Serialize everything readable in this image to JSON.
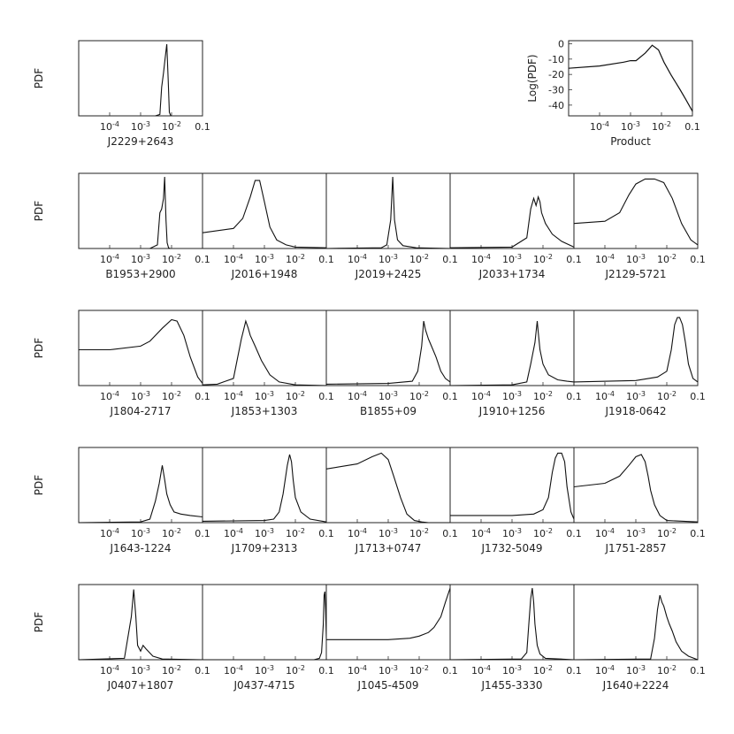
{
  "chart_data": {
    "type": "line",
    "x_scale": "log",
    "x_range": [
      1e-05,
      0.1
    ],
    "x_ticks": [
      {
        "value": 0.0001,
        "label_base": "10",
        "label_exp": "-4"
      },
      {
        "value": 0.001,
        "label_base": "10",
        "label_exp": "-3"
      },
      {
        "value": 0.01,
        "label_base": "10",
        "label_exp": "-2"
      },
      {
        "value": 0.1,
        "label_base": "0.1",
        "label_exp": ""
      }
    ],
    "y_label": "PDF",
    "product_panel": {
      "title": "Product",
      "ylabel": "Log(PDF)",
      "y_range": [
        -47,
        2
      ],
      "y_ticks": [
        0,
        -10,
        -20,
        -30,
        -40
      ],
      "x": [
        1e-05,
        0.0001,
        0.0006,
        0.001,
        0.0015,
        0.003,
        0.005,
        0.008,
        0.012,
        0.02,
        0.04,
        0.06,
        0.1
      ],
      "y": [
        -16,
        -14.5,
        -12,
        -11,
        -11,
        -6,
        -1,
        -4,
        -12,
        -20,
        -30,
        -36,
        -44
      ]
    },
    "panels": [
      {
        "name": "J2229+2643",
        "x": [
          0.003,
          0.0042,
          0.0048,
          0.0055,
          0.0062,
          0.007,
          0.0078,
          0.0085,
          0.0095
        ],
        "y": [
          0,
          0.02,
          0.4,
          0.6,
          0.8,
          1.0,
          0.5,
          0.05,
          0
        ]
      },
      {
        "name": "B1953+2900",
        "x": [
          0.002,
          0.0035,
          0.0042,
          0.0048,
          0.0055,
          0.006,
          0.0066,
          0.0072,
          0.008,
          0.009
        ],
        "y": [
          0,
          0.05,
          0.5,
          0.55,
          0.7,
          1.0,
          0.4,
          0.08,
          0.01,
          0
        ]
      },
      {
        "name": "J2016+1948",
        "x": [
          1e-05,
          0.0001,
          0.0002,
          0.00035,
          0.0005,
          0.0007,
          0.001,
          0.0015,
          0.0025,
          0.005,
          0.01,
          0.1
        ],
        "y": [
          0.22,
          0.28,
          0.42,
          0.72,
          0.95,
          0.95,
          0.65,
          0.3,
          0.12,
          0.05,
          0.02,
          0.01
        ]
      },
      {
        "name": "J2019+2425",
        "x": [
          1e-05,
          0.0006,
          0.0009,
          0.0012,
          0.0014,
          0.0016,
          0.002,
          0.003,
          0.008,
          0.1
        ],
        "y": [
          0,
          0.01,
          0.05,
          0.4,
          1.0,
          0.4,
          0.12,
          0.04,
          0.01,
          0
        ]
      },
      {
        "name": "J2033+1734",
        "x": [
          1e-05,
          0.001,
          0.003,
          0.004,
          0.005,
          0.006,
          0.007,
          0.008,
          0.009,
          0.012,
          0.02,
          0.04,
          0.1
        ],
        "y": [
          0.01,
          0.02,
          0.15,
          0.55,
          0.7,
          0.6,
          0.72,
          0.65,
          0.5,
          0.35,
          0.2,
          0.1,
          0.02
        ]
      },
      {
        "name": "J2129-5721",
        "x": [
          1e-05,
          0.0001,
          0.0003,
          0.0006,
          0.001,
          0.002,
          0.004,
          0.008,
          0.015,
          0.03,
          0.06,
          0.1
        ],
        "y": [
          0.35,
          0.38,
          0.5,
          0.75,
          0.9,
          0.97,
          0.97,
          0.92,
          0.7,
          0.35,
          0.12,
          0.05
        ]
      },
      {
        "name": "J1804-2717",
        "x": [
          1e-05,
          0.0001,
          0.001,
          0.002,
          0.005,
          0.01,
          0.015,
          0.025,
          0.04,
          0.07,
          0.1
        ],
        "y": [
          0.5,
          0.5,
          0.55,
          0.62,
          0.8,
          0.92,
          0.9,
          0.7,
          0.4,
          0.12,
          0.03
        ]
      },
      {
        "name": "J1853+1303",
        "x": [
          1e-05,
          3e-05,
          0.0001,
          0.00018,
          0.00025,
          0.0003,
          0.00035,
          0.0005,
          0.0008,
          0.0015,
          0.003,
          0.01,
          0.1
        ],
        "y": [
          0.01,
          0.02,
          0.1,
          0.65,
          0.9,
          0.8,
          0.7,
          0.55,
          0.35,
          0.15,
          0.05,
          0.01,
          0
        ]
      },
      {
        "name": "B1855+09",
        "x": [
          1e-05,
          0.001,
          0.006,
          0.009,
          0.012,
          0.014,
          0.016,
          0.02,
          0.025,
          0.035,
          0.05,
          0.07,
          0.1
        ],
        "y": [
          0.02,
          0.03,
          0.06,
          0.2,
          0.55,
          0.9,
          0.78,
          0.65,
          0.55,
          0.4,
          0.2,
          0.1,
          0.05
        ]
      },
      {
        "name": "J1910+1256",
        "x": [
          1e-05,
          0.001,
          0.003,
          0.004,
          0.0055,
          0.0065,
          0.007,
          0.008,
          0.01,
          0.015,
          0.03,
          0.06,
          0.1
        ],
        "y": [
          0,
          0.01,
          0.05,
          0.3,
          0.6,
          0.9,
          0.75,
          0.5,
          0.3,
          0.15,
          0.08,
          0.06,
          0.05
        ]
      },
      {
        "name": "J1918-0642",
        "x": [
          1e-05,
          0.001,
          0.005,
          0.01,
          0.014,
          0.018,
          0.022,
          0.026,
          0.032,
          0.04,
          0.05,
          0.07,
          0.1
        ],
        "y": [
          0.05,
          0.07,
          0.12,
          0.2,
          0.5,
          0.85,
          0.95,
          0.95,
          0.85,
          0.6,
          0.3,
          0.1,
          0.05
        ]
      },
      {
        "name": "J1643-1224",
        "x": [
          1e-05,
          0.001,
          0.002,
          0.003,
          0.004,
          0.005,
          0.006,
          0.007,
          0.009,
          0.012,
          0.02,
          0.04,
          0.1
        ],
        "y": [
          0,
          0.01,
          0.05,
          0.3,
          0.55,
          0.8,
          0.6,
          0.4,
          0.25,
          0.15,
          0.12,
          0.1,
          0.08
        ]
      },
      {
        "name": "J1709+2313",
        "x": [
          1e-05,
          0.001,
          0.002,
          0.003,
          0.004,
          0.0055,
          0.0065,
          0.0075,
          0.0085,
          0.01,
          0.015,
          0.03,
          0.1
        ],
        "y": [
          0.02,
          0.03,
          0.05,
          0.15,
          0.4,
          0.8,
          0.95,
          0.85,
          0.6,
          0.35,
          0.15,
          0.05,
          0.01
        ]
      },
      {
        "name": "J1713+0747",
        "x": [
          1e-05,
          0.0001,
          0.0003,
          0.0006,
          0.001,
          0.0015,
          0.0025,
          0.004,
          0.007,
          0.012,
          0.02,
          0.1
        ],
        "y": [
          0.75,
          0.82,
          0.92,
          0.97,
          0.88,
          0.65,
          0.35,
          0.12,
          0.03,
          0.01,
          0,
          0
        ]
      },
      {
        "name": "J1732-5049",
        "x": [
          1e-05,
          0.001,
          0.005,
          0.01,
          0.015,
          0.02,
          0.025,
          0.03,
          0.04,
          0.05,
          0.06,
          0.08,
          0.1
        ],
        "y": [
          0.1,
          0.1,
          0.12,
          0.18,
          0.35,
          0.7,
          0.9,
          0.97,
          0.97,
          0.85,
          0.5,
          0.15,
          0.05
        ]
      },
      {
        "name": "J1751-2857",
        "x": [
          1e-05,
          0.0001,
          0.0003,
          0.0006,
          0.001,
          0.0015,
          0.002,
          0.0025,
          0.003,
          0.004,
          0.006,
          0.01,
          0.1
        ],
        "y": [
          0.5,
          0.55,
          0.65,
          0.8,
          0.92,
          0.95,
          0.85,
          0.65,
          0.45,
          0.25,
          0.1,
          0.03,
          0.01
        ]
      },
      {
        "name": "J0407+1807",
        "x": [
          1e-05,
          0.0003,
          0.0005,
          0.0006,
          0.0007,
          0.0008,
          0.001,
          0.0012,
          0.0015,
          0.0025,
          0.005,
          0.1
        ],
        "y": [
          0,
          0.02,
          0.6,
          0.98,
          0.6,
          0.2,
          0.12,
          0.2,
          0.15,
          0.05,
          0.01,
          0
        ]
      },
      {
        "name": "J0437-4715",
        "x": [
          1e-05,
          0.01,
          0.04,
          0.06,
          0.07,
          0.08,
          0.085,
          0.09,
          0.095,
          0.1
        ],
        "y": [
          0,
          0,
          0,
          0.02,
          0.1,
          0.5,
          0.9,
          0.95,
          0.7,
          0.3
        ]
      },
      {
        "name": "J1045-4509",
        "x": [
          1e-05,
          0.0001,
          0.001,
          0.005,
          0.01,
          0.02,
          0.03,
          0.05,
          0.07,
          0.1
        ],
        "y": [
          0.28,
          0.28,
          0.28,
          0.3,
          0.33,
          0.38,
          0.45,
          0.6,
          0.8,
          1.0
        ]
      },
      {
        "name": "J1455-3330",
        "x": [
          1e-05,
          0.002,
          0.003,
          0.0035,
          0.004,
          0.0045,
          0.005,
          0.0055,
          0.0065,
          0.008,
          0.012,
          0.1
        ],
        "y": [
          0,
          0.01,
          0.1,
          0.5,
          0.85,
          1.0,
          0.8,
          0.5,
          0.2,
          0.08,
          0.02,
          0
        ]
      },
      {
        "name": "J1640+2224",
        "x": [
          1e-05,
          0.003,
          0.004,
          0.005,
          0.006,
          0.007,
          0.008,
          0.01,
          0.012,
          0.015,
          0.02,
          0.03,
          0.05,
          0.1
        ],
        "y": [
          0,
          0.01,
          0.3,
          0.7,
          0.9,
          0.8,
          0.75,
          0.6,
          0.5,
          0.4,
          0.25,
          0.12,
          0.05,
          0
        ]
      }
    ]
  }
}
